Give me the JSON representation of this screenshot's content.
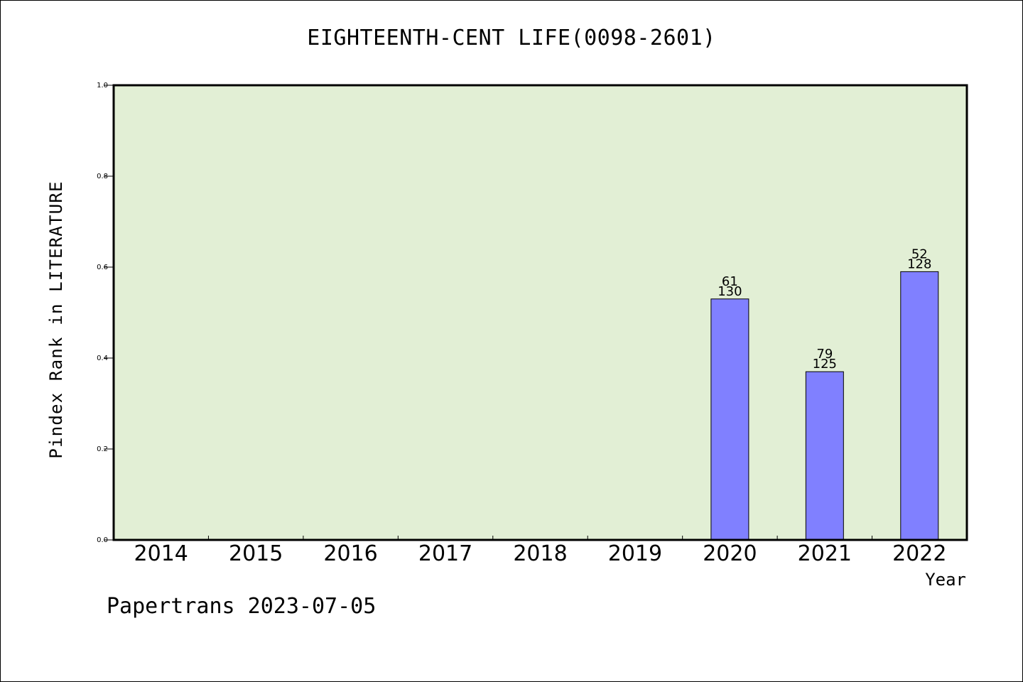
{
  "chart_data": {
    "type": "bar",
    "title": "EIGHTEENTH-CENT LIFE(0098-2601)",
    "xlabel": "Year",
    "ylabel": "Pindex Rank in LITERATURE",
    "categories": [
      "2014",
      "2015",
      "2016",
      "2017",
      "2018",
      "2019",
      "2020",
      "2021",
      "2022"
    ],
    "values": [
      null,
      null,
      null,
      null,
      null,
      null,
      0.53,
      0.37,
      0.59
    ],
    "labels_top": [
      "",
      "",
      "",
      "",
      "",
      "",
      "61",
      "79",
      "52"
    ],
    "labels_bottom": [
      "",
      "",
      "",
      "",
      "",
      "",
      "130",
      "125",
      "128"
    ],
    "ylim": [
      0,
      1.0
    ],
    "yticks": [
      "0.0",
      "0.2",
      "0.4",
      "0.6",
      "0.8",
      "1.0"
    ],
    "grid": false,
    "colors": {
      "plot_background": "#e2efd5",
      "bar_fill": "#8080ff",
      "bar_stroke": "#000000"
    }
  },
  "footer": {
    "text": "Papertrans 2023-07-05"
  }
}
